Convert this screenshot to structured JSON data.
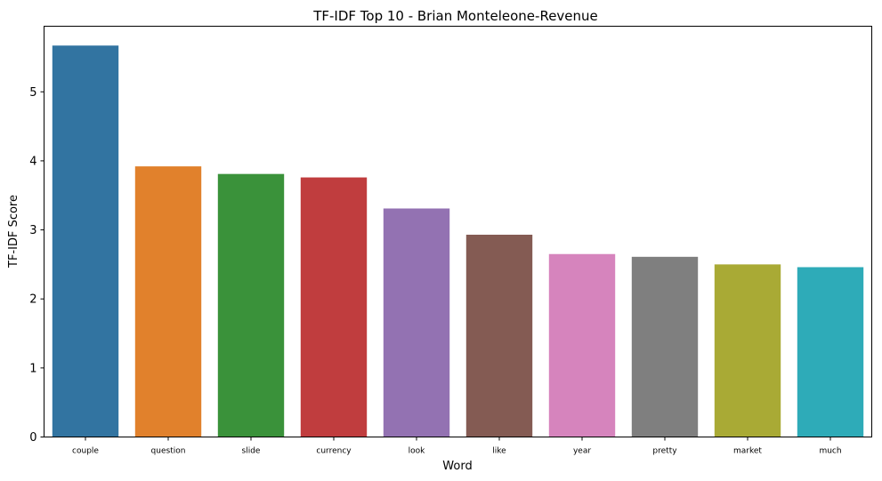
{
  "chart_data": {
    "type": "bar",
    "title": "TF-IDF Top 10 - Brian Monteleone-Revenue",
    "xlabel": "Word",
    "ylabel": "TF-IDF Score",
    "categories": [
      "couple",
      "question",
      "slide",
      "currency",
      "look",
      "like",
      "year",
      "pretty",
      "market",
      "much"
    ],
    "values": [
      5.67,
      3.92,
      3.81,
      3.76,
      3.31,
      2.93,
      2.65,
      2.61,
      2.5,
      2.46
    ],
    "colors": [
      "#3274a1",
      "#e1812c",
      "#3a923a",
      "#c03d3e",
      "#9372b2",
      "#845b53",
      "#d684bd",
      "#7f7f7f",
      "#a9aa35",
      "#2eabb8"
    ],
    "ylim": [
      0,
      5.95
    ],
    "yticks": [
      0,
      1,
      2,
      3,
      4,
      5
    ],
    "grid": false,
    "legend": "none"
  }
}
